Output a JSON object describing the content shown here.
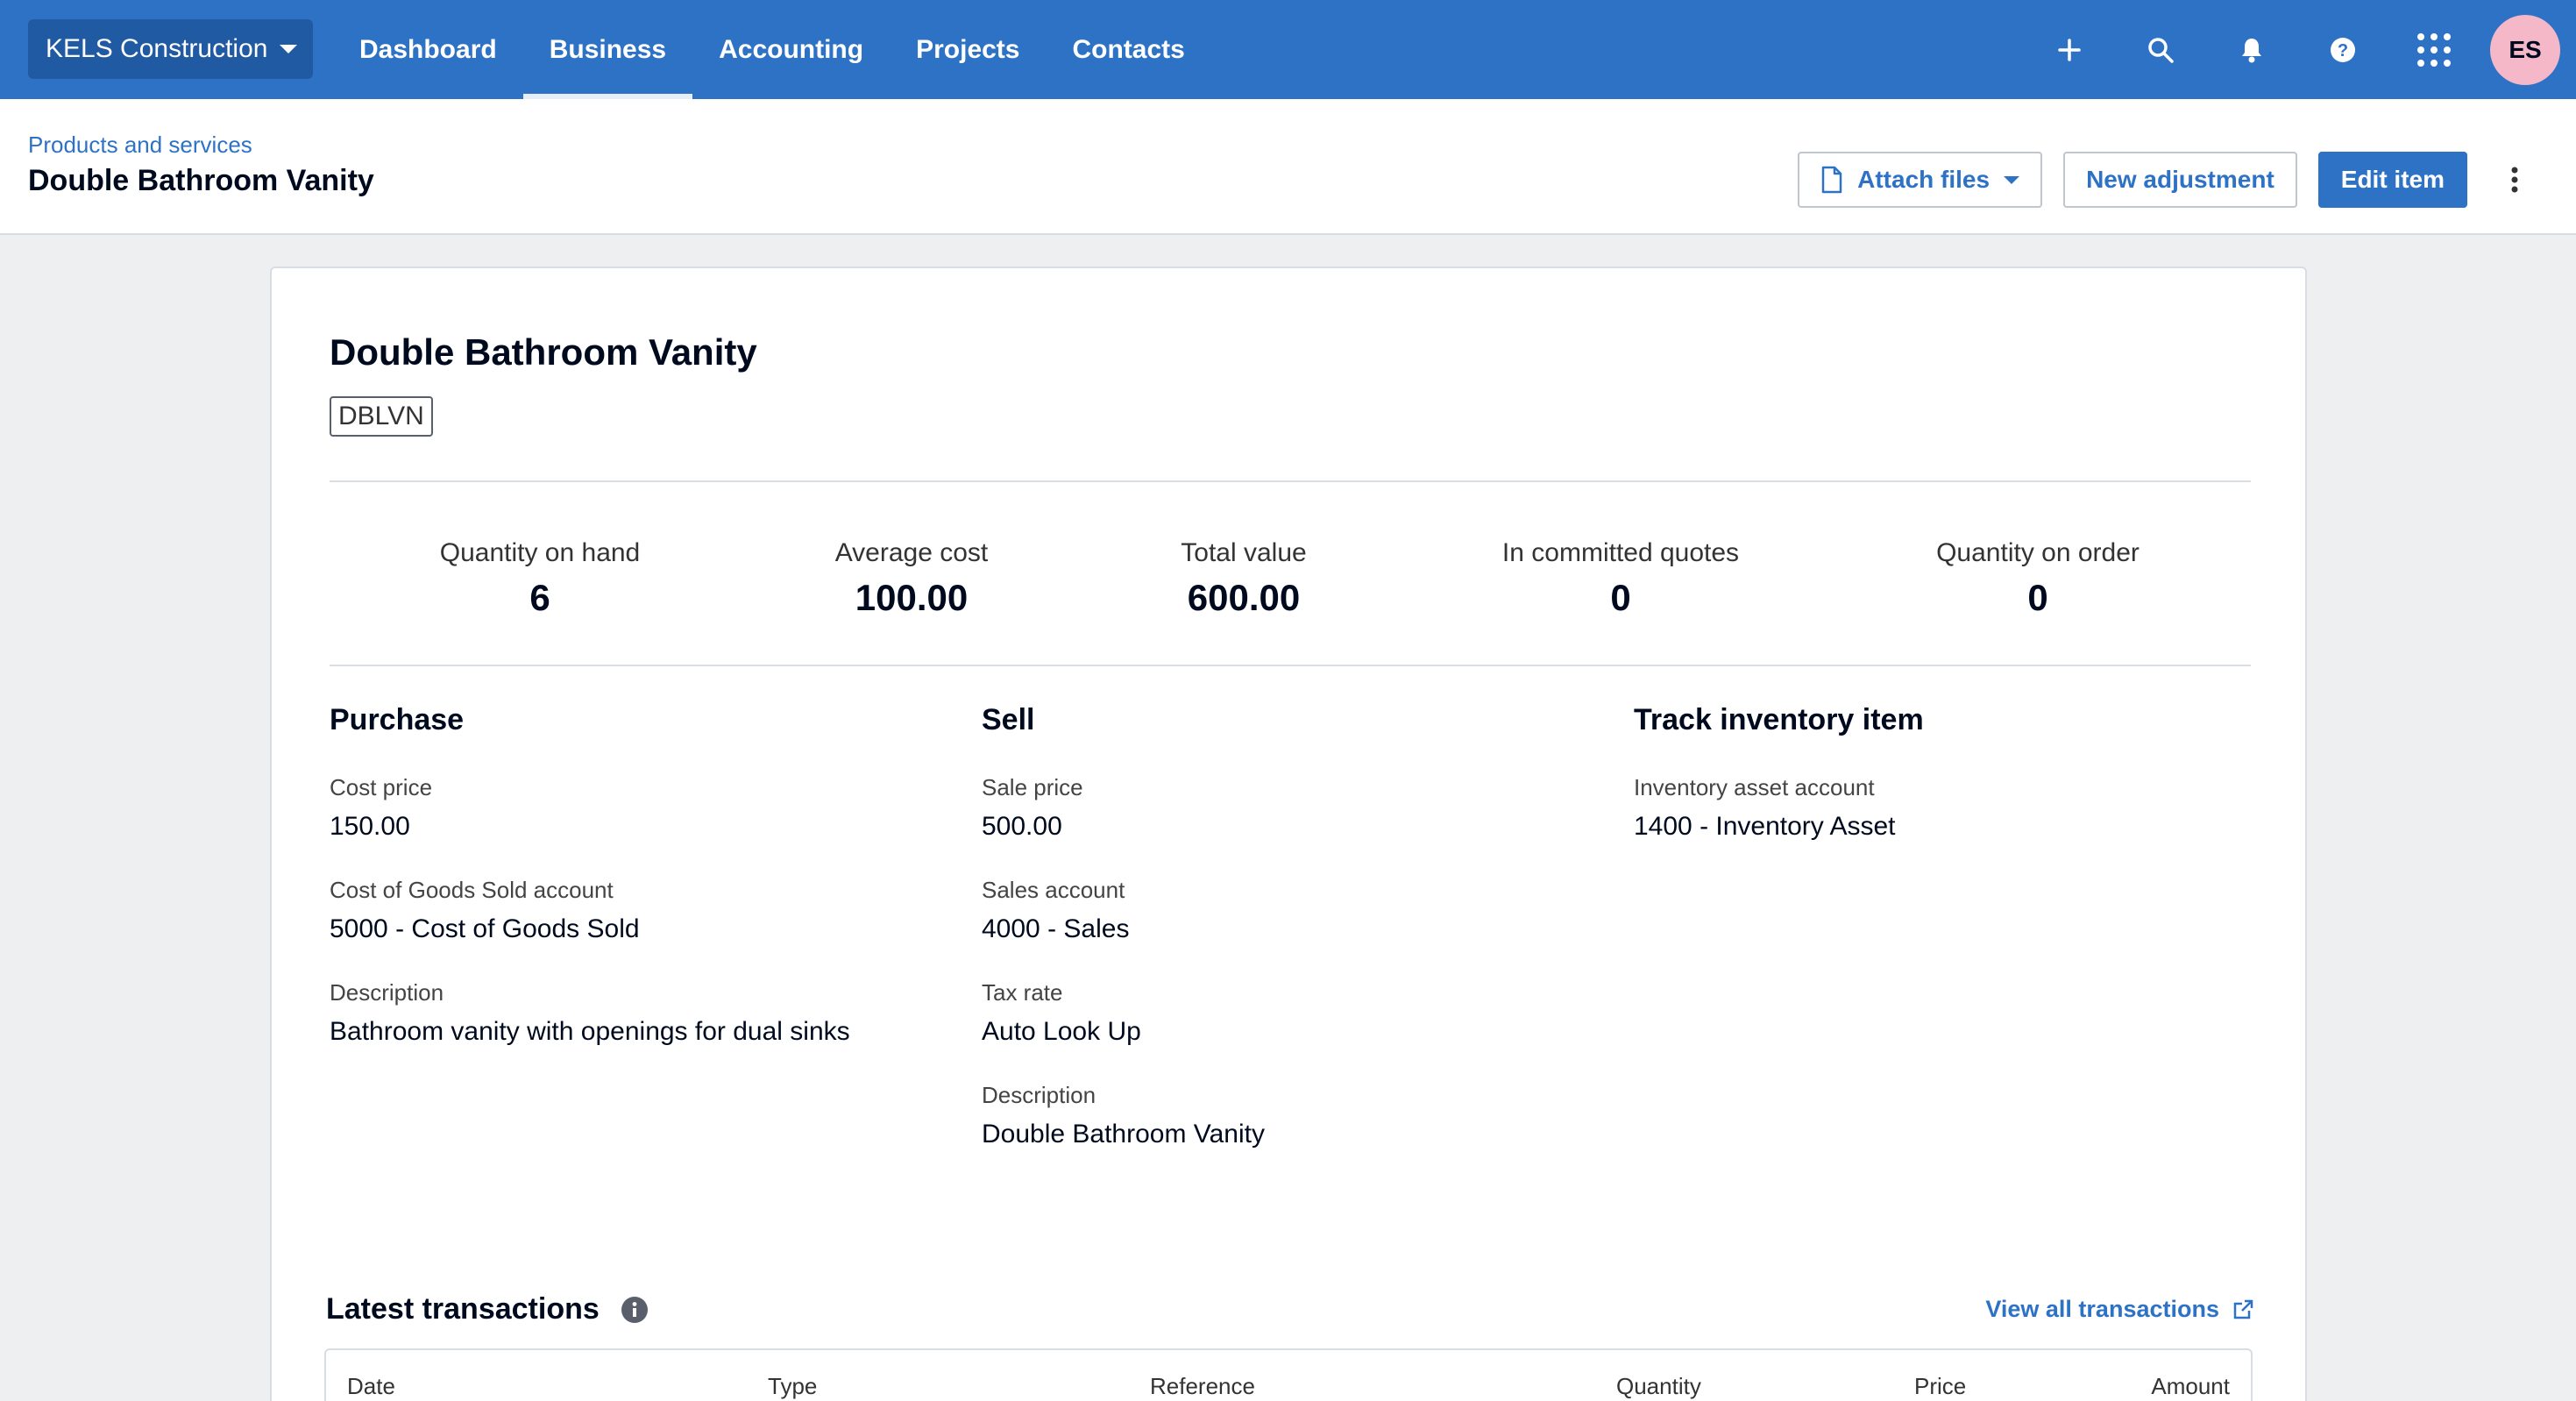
{
  "topnav": {
    "org_name": "KELS Construction",
    "tabs": [
      {
        "label": "Dashboard",
        "active": false
      },
      {
        "label": "Business",
        "active": true
      },
      {
        "label": "Accounting",
        "active": false
      },
      {
        "label": "Projects",
        "active": false
      },
      {
        "label": "Contacts",
        "active": false
      }
    ],
    "icons": [
      "plus-icon",
      "search-icon",
      "bell-icon",
      "help-icon",
      "apps-grid-icon"
    ],
    "avatar_initials": "ES",
    "colors": {
      "nav_bg": "#2e72c6",
      "org_bg": "#1f5aa3",
      "avatar_bg": "#f4b8c8"
    }
  },
  "header": {
    "breadcrumb": "Products and services",
    "title": "Double Bathroom Vanity",
    "actions": {
      "attach_files": "Attach files",
      "new_adjustment": "New adjustment",
      "edit_item": "Edit item"
    }
  },
  "item": {
    "title": "Double Bathroom Vanity",
    "code": "DBLVN",
    "stats": [
      {
        "label": "Quantity on hand",
        "value": "6"
      },
      {
        "label": "Average cost",
        "value": "100.00"
      },
      {
        "label": "Total value",
        "value": "600.00"
      },
      {
        "label": "In committed quotes",
        "value": "0"
      },
      {
        "label": "Quantity on order",
        "value": "0"
      }
    ],
    "purchase": {
      "heading": "Purchase",
      "fields": [
        {
          "label": "Cost price",
          "value": "150.00"
        },
        {
          "label": "Cost of Goods Sold account",
          "value": "5000 - Cost of Goods Sold"
        },
        {
          "label": "Description",
          "value": "Bathroom vanity with openings for dual sinks"
        }
      ]
    },
    "sell": {
      "heading": "Sell",
      "fields": [
        {
          "label": "Sale price",
          "value": "500.00"
        },
        {
          "label": "Sales account",
          "value": "4000 - Sales"
        },
        {
          "label": "Tax rate",
          "value": "Auto Look Up"
        },
        {
          "label": "Description",
          "value": "Double Bathroom Vanity"
        }
      ]
    },
    "inventory": {
      "heading": "Track inventory item",
      "fields": [
        {
          "label": "Inventory asset account",
          "value": "1400 - Inventory Asset"
        }
      ]
    }
  },
  "transactions": {
    "title": "Latest transactions",
    "view_all": "View all transactions",
    "columns": [
      "Date",
      "Type",
      "Reference",
      "Quantity",
      "Price",
      "Amount"
    ]
  }
}
